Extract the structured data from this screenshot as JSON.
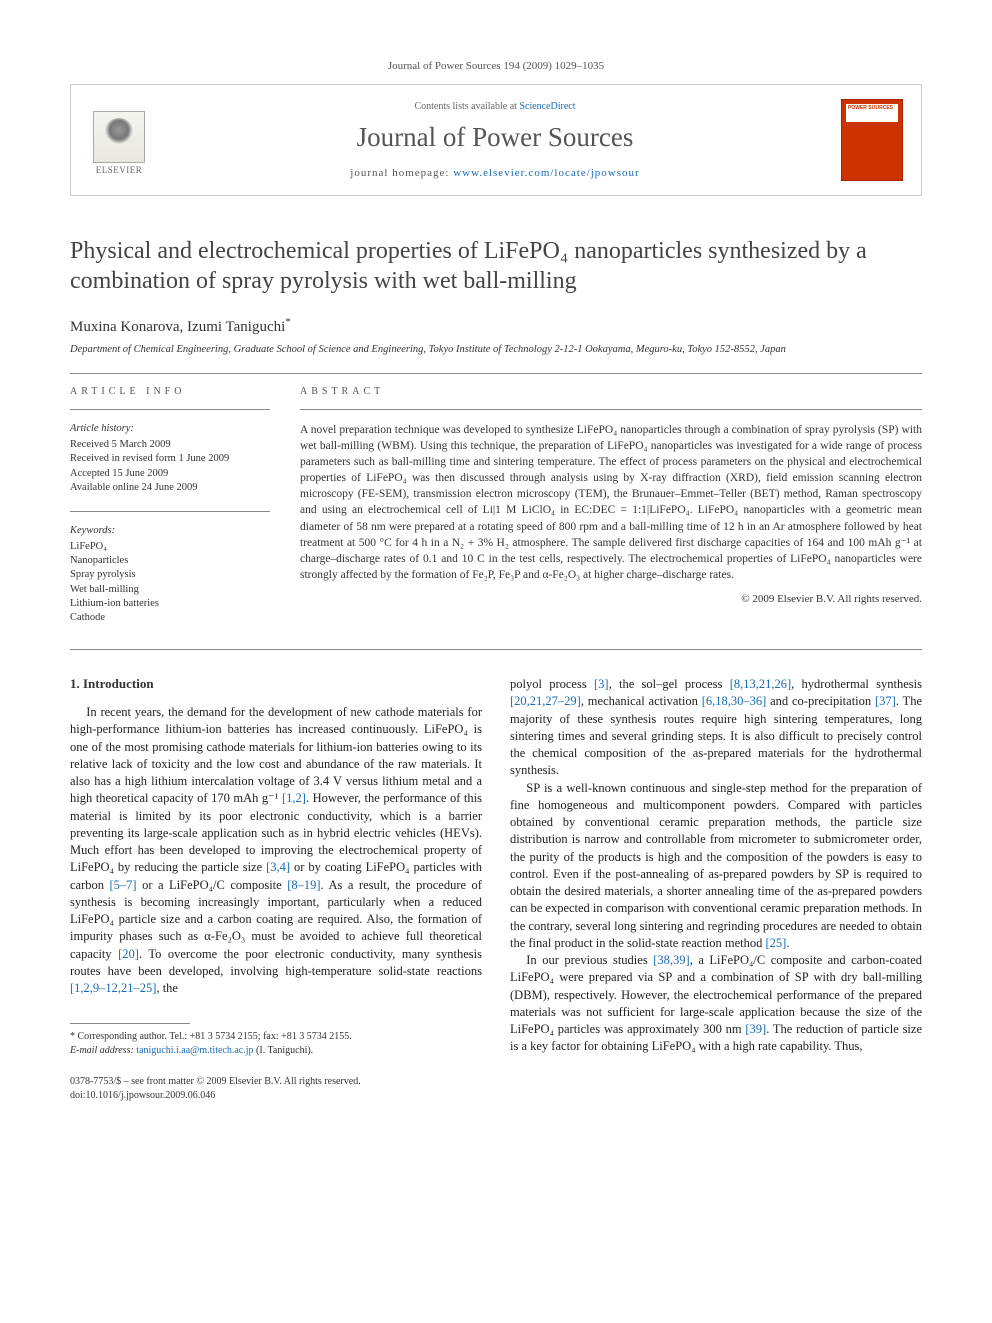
{
  "citation": "Journal of Power Sources 194 (2009) 1029–1035",
  "header": {
    "publisher": "ELSEVIER",
    "contents_prefix": "Contents lists available at ",
    "contents_link": "ScienceDirect",
    "journal_name": "Journal of Power Sources",
    "homepage_prefix": "journal homepage: ",
    "homepage_url": "www.elsevier.com/locate/jpowsour"
  },
  "article": {
    "title": "Physical and electrochemical properties of LiFePO₄ nanoparticles synthesized by a combination of spray pyrolysis with wet ball-milling",
    "authors": "Muxina Konarova, Izumi Taniguchi",
    "corr_marker": "*",
    "affiliation": "Department of Chemical Engineering, Graduate School of Science and Engineering, Tokyo Institute of Technology 2-12-1 Ookayama, Meguro-ku, Tokyo 152-8552, Japan"
  },
  "info": {
    "label": "ARTICLE INFO",
    "history_head": "Article history:",
    "history": [
      "Received 5 March 2009",
      "Received in revised form 1 June 2009",
      "Accepted 15 June 2009",
      "Available online 24 June 2009"
    ],
    "keywords_head": "Keywords:",
    "keywords": [
      "LiFePO₄",
      "Nanoparticles",
      "Spray pyrolysis",
      "Wet ball-milling",
      "Lithium-ion batteries",
      "Cathode"
    ]
  },
  "abstract": {
    "label": "ABSTRACT",
    "text": "A novel preparation technique was developed to synthesize LiFePO₄ nanoparticles through a combination of spray pyrolysis (SP) with wet ball-milling (WBM). Using this technique, the preparation of LiFePO₄ nanoparticles was investigated for a wide range of process parameters such as ball-milling time and sintering temperature. The effect of process parameters on the physical and electrochemical properties of LiFePO₄ was then discussed through analysis using by X-ray diffraction (XRD), field emission scanning electron microscopy (FE-SEM), transmission electron microscopy (TEM), the Brunauer–Emmet–Teller (BET) method, Raman spectroscopy and using an electrochemical cell of Li|1 M LiClO₄ in EC:DEC = 1:1|LiFePO₄. LiFePO₄ nanoparticles with a geometric mean diameter of 58 nm were prepared at a rotating speed of 800 rpm and a ball-milling time of 12 h in an Ar atmosphere followed by heat treatment at 500 °C for 4 h in a N₂ + 3% H₂ atmosphere. The sample delivered first discharge capacities of 164 and 100 mAh g⁻¹ at charge–discharge rates of 0.1 and 10 C in the test cells, respectively. The electrochemical properties of LiFePO₄ nanoparticles were strongly affected by the formation of Fe₂P, Fe₃P and α-Fe₂O₃ at higher charge–discharge rates.",
    "copyright": "© 2009 Elsevier B.V. All rights reserved."
  },
  "body": {
    "heading1": "1. Introduction",
    "col1": "In recent years, the demand for the development of new cathode materials for high-performance lithium-ion batteries has increased continuously. LiFePO₄ is one of the most promising cathode materials for lithium-ion batteries owing to its relative lack of toxicity and the low cost and abundance of the raw materials. It also has a high lithium intercalation voltage of 3.4 V versus lithium metal and a high theoretical capacity of 170 mAh g⁻¹ [1,2]. However, the performance of this material is limited by its poor electronic conductivity, which is a barrier preventing its large-scale application such as in hybrid electric vehicles (HEVs). Much effort has been developed to improving the electrochemical property of LiFePO₄ by reducing the particle size [3,4] or by coating LiFePO₄ particles with carbon [5–7] or a LiFePO₄/C composite [8–19]. As a result, the procedure of synthesis is becoming increasingly important, particularly when a reduced LiFePO₄ particle size and a carbon coating are required. Also, the formation of impurity phases such as α-Fe₂O₃ must be avoided to achieve full theoretical capacity [20]. To overcome the poor electronic conductivity, many synthesis routes have been developed, involving high-temperature solid-state reactions [1,2,9–12,21–25], the",
    "col2_p1": "polyol process [3], the sol–gel process [8,13,21,26], hydrothermal synthesis [20,21,27–29], mechanical activation [6,18,30–36] and co-precipitation [37]. The majority of these synthesis routes require high sintering temperatures, long sintering times and several grinding steps. It is also difficult to precisely control the chemical composition of the as-prepared materials for the hydrothermal synthesis.",
    "col2_p2": "SP is a well-known continuous and single-step method for the preparation of fine homogeneous and multicomponent powders. Compared with particles obtained by conventional ceramic preparation methods, the particle size distribution is narrow and controllable from micrometer to submicrometer order, the purity of the products is high and the composition of the powders is easy to control. Even if the post-annealing of as-prepared powders by SP is required to obtain the desired materials, a shorter annealing time of the as-prepared powders can be expected in comparison with conventional ceramic preparation methods. In the contrary, several long sintering and regrinding procedures are needed to obtain the final product in the solid-state reaction method [25].",
    "col2_p3": "In our previous studies [38,39], a LiFePO₄/C composite and carbon-coated LiFePO₄ were prepared via SP and a combination of SP with dry ball-milling (DBM), respectively. However, the electrochemical performance of the prepared materials was not sufficient for large-scale application because the size of the LiFePO₄ particles was approximately 300 nm [39]. The reduction of particle size is a key factor for obtaining LiFePO₄ with a high rate capability. Thus,"
  },
  "footnote": {
    "corr": "* Corresponding author. Tel.: +81 3 5734 2155; fax: +81 3 5734 2155.",
    "email_label": "E-mail address: ",
    "email": "taniguchi.i.aa@m.titech.ac.jp",
    "email_suffix": " (I. Taniguchi)."
  },
  "bottom": {
    "line1": "0378-7753/$ – see front matter © 2009 Elsevier B.V. All rights reserved.",
    "line2": "doi:10.1016/j.jpowsour.2009.06.046"
  },
  "colors": {
    "link": "#1a6bb3",
    "cover": "#cc3300"
  }
}
